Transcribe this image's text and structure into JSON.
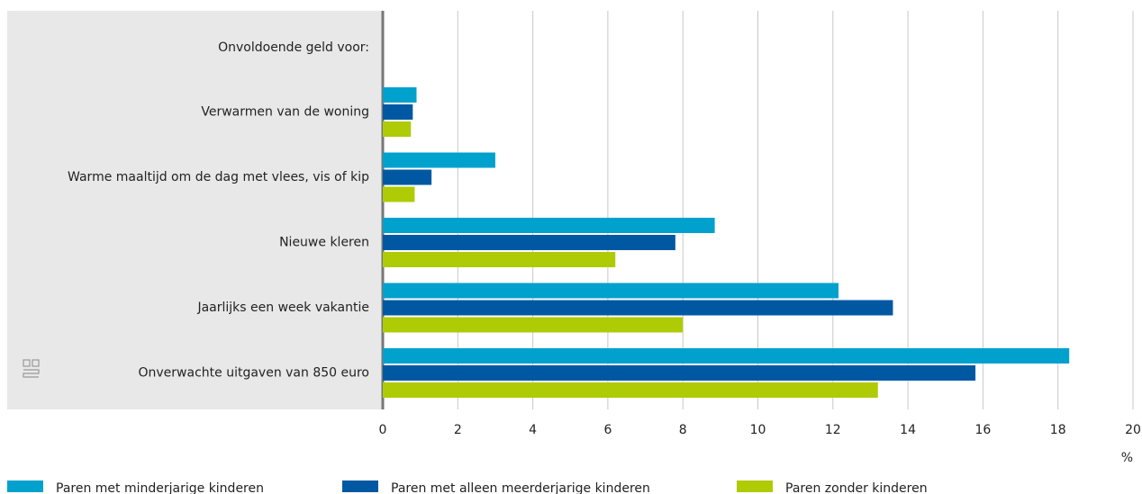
{
  "chart_data": {
    "type": "bar",
    "orientation": "horizontal",
    "group_label": "Onvoldoende geld voor:",
    "categories": [
      "Verwarmen van de woning",
      "Warme maaltijd om de dag met vlees, vis of kip",
      "Nieuwe kleren",
      "Jaarlijks een week vakantie",
      "Onverwachte uitgaven van 850 euro"
    ],
    "series": [
      {
        "name": "Paren met minderjarige kinderen",
        "color": "#00a1cd",
        "values": [
          0.9,
          3.0,
          8.85,
          12.15,
          18.3
        ]
      },
      {
        "name": "Paren met alleen meerderjarige kinderen",
        "color": "#0058a3",
        "values": [
          0.8,
          1.3,
          7.8,
          13.6,
          15.8
        ]
      },
      {
        "name": "Paren zonder kinderen",
        "color": "#afcb05",
        "values": [
          0.75,
          0.85,
          6.2,
          8.0,
          13.2
        ]
      }
    ],
    "xlabel": "%",
    "xlim": [
      0,
      20
    ],
    "xticks": [
      0,
      2,
      4,
      6,
      8,
      10,
      12,
      14,
      16,
      18,
      20
    ],
    "grid": true
  }
}
